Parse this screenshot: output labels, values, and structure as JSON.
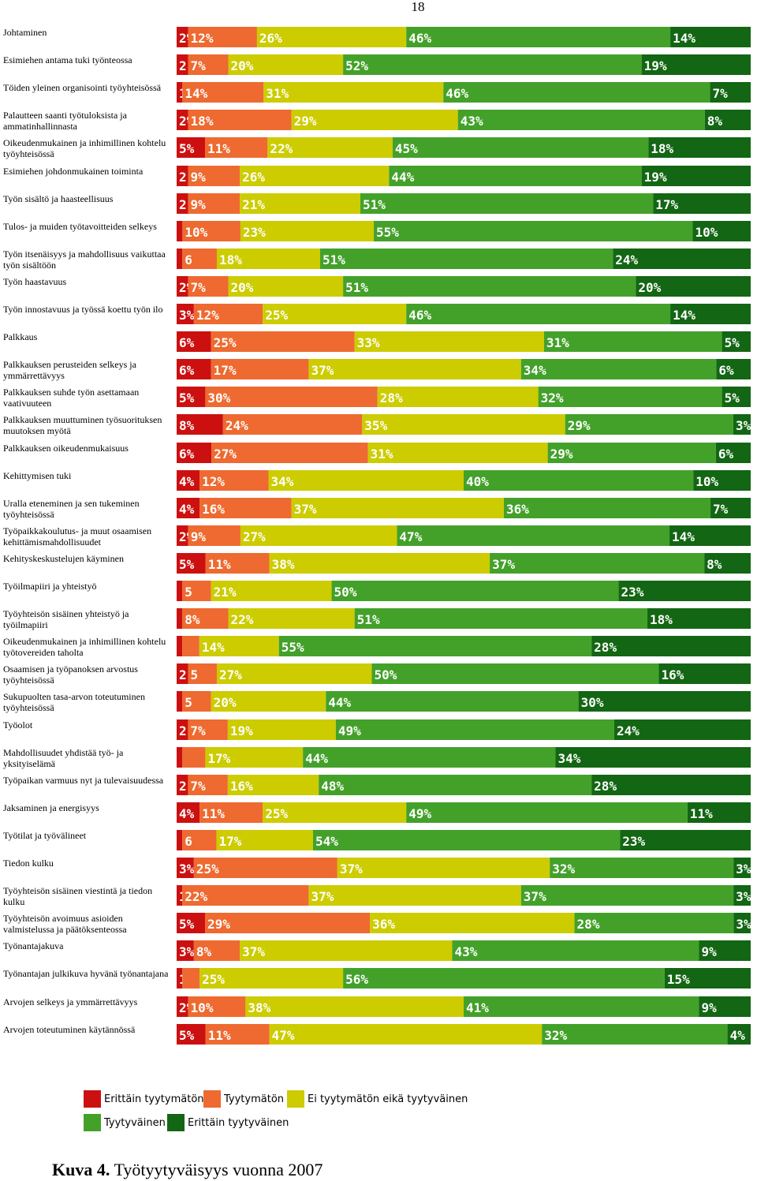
{
  "page_number": "18",
  "caption": {
    "label": "Kuva 4.",
    "text": "Työtyytyväisyys vuonna 2007"
  },
  "colors": [
    "#cc1010",
    "#ee6a30",
    "#cccc00",
    "#43a12a",
    "#136613"
  ],
  "legend": [
    {
      "label": "Erittäin tyytymätön",
      "color": "#cc1010"
    },
    {
      "label": "Tyytymätön",
      "color": "#ee6a30"
    },
    {
      "label": "Ei tyytymätön eikä tyytyväinen",
      "color": "#cccc00"
    },
    {
      "label": "Tyytyväinen",
      "color": "#43a12a"
    },
    {
      "label": "Erittäin tyytyväinen",
      "color": "#136613"
    }
  ],
  "chart_data": {
    "type": "bar",
    "orientation": "horizontal",
    "stacked": true,
    "unit": "%",
    "xlim": [
      0,
      100
    ],
    "series_names": [
      "Erittäin tyytymätön",
      "Tyytymätön",
      "Ei tyytymätön eikä tyytyväinen",
      "Tyytyväinen",
      "Erittäin tyytyväinen"
    ],
    "rows": [
      {
        "label": "Johtaminen",
        "values": [
          2,
          12,
          26,
          46,
          14
        ],
        "labels": [
          "2%",
          "12%",
          "26%",
          "46%",
          "14%"
        ]
      },
      {
        "label": "Esimiehen antama tuki työnteossa",
        "values": [
          2,
          7,
          20,
          52,
          19
        ],
        "labels": [
          "2",
          "7%",
          "20%",
          "52%",
          "19%"
        ]
      },
      {
        "label": "Töiden yleinen organisointi työyhteisössä",
        "values": [
          1,
          14,
          31,
          46,
          7
        ],
        "labels": [
          "1",
          "14%",
          "31%",
          "46%",
          "7%"
        ]
      },
      {
        "label": "Palautteen saanti työtuloksista ja ammatinhallinnasta",
        "values": [
          2,
          18,
          29,
          43,
          8
        ],
        "labels": [
          "2%",
          "18%",
          "29%",
          "43%",
          "8%"
        ]
      },
      {
        "label": "Oikeudenmukainen ja inhimillinen kohtelu työyhteisössä",
        "values": [
          5,
          11,
          22,
          45,
          18
        ],
        "labels": [
          "5%",
          "11%",
          "22%",
          "45%",
          "18%"
        ]
      },
      {
        "label": "Esimiehen johdonmukainen toiminta",
        "values": [
          2,
          9,
          26,
          44,
          19
        ],
        "labels": [
          "2",
          "9%",
          "26%",
          "44%",
          "19%"
        ]
      },
      {
        "label": "Työn sisältö ja haasteellisuus",
        "values": [
          2,
          9,
          21,
          51,
          17
        ],
        "labels": [
          "2",
          "9%",
          "21%",
          "51%",
          "17%"
        ]
      },
      {
        "label": "Tulos- ja muiden työtavoitteiden selkeys",
        "values": [
          1,
          10,
          23,
          55,
          10
        ],
        "labels": [
          "",
          "10%",
          "23%",
          "55%",
          "10%"
        ]
      },
      {
        "label": "Työn itsenäisyys ja mahdollisuus vaikuttaa työn sisältöön",
        "values": [
          1,
          6,
          18,
          51,
          24
        ],
        "labels": [
          "",
          "6",
          "18%",
          "51%",
          "24%"
        ]
      },
      {
        "label": "Työn haastavuus",
        "values": [
          2,
          7,
          20,
          51,
          20
        ],
        "labels": [
          "2%",
          "7%",
          "20%",
          "51%",
          "20%"
        ]
      },
      {
        "label": "Työn innostavuus ja työssä koettu työn ilo",
        "values": [
          3,
          12,
          25,
          46,
          14
        ],
        "labels": [
          "3%",
          "12%",
          "25%",
          "46%",
          "14%"
        ]
      },
      {
        "label": "Palkkaus",
        "values": [
          6,
          25,
          33,
          31,
          5
        ],
        "labels": [
          "6%",
          "25%",
          "33%",
          "31%",
          "5%"
        ]
      },
      {
        "label": "Palkkauksen perusteiden selkeys ja ymmärrettävyys",
        "values": [
          6,
          17,
          37,
          34,
          6
        ],
        "labels": [
          "6%",
          "17%",
          "37%",
          "34%",
          "6%"
        ]
      },
      {
        "label": "Palkkauksen suhde työn asettamaan vaativuuteen",
        "values": [
          5,
          30,
          28,
          32,
          5
        ],
        "labels": [
          "5%",
          "30%",
          "28%",
          "32%",
          "5%"
        ]
      },
      {
        "label": "Palkkauksen muuttuminen työsuorituksen muutoksen myötä",
        "values": [
          8,
          24,
          35,
          29,
          3
        ],
        "labels": [
          "8%",
          "24%",
          "35%",
          "29%",
          "3%"
        ]
      },
      {
        "label": "Palkkauksen oikeudenmukaisuus",
        "values": [
          6,
          27,
          31,
          29,
          6
        ],
        "labels": [
          "6%",
          "27%",
          "31%",
          "29%",
          "6%"
        ]
      },
      {
        "label": "Kehittymisen tuki",
        "values": [
          4,
          12,
          34,
          40,
          10
        ],
        "labels": [
          "4%",
          "12%",
          "34%",
          "40%",
          "10%"
        ]
      },
      {
        "label": "Uralla eteneminen ja sen tukeminen työyhteisössä",
        "values": [
          4,
          16,
          37,
          36,
          7
        ],
        "labels": [
          "4%",
          "16%",
          "37%",
          "36%",
          "7%"
        ]
      },
      {
        "label": "Työpaikkakoulutus- ja muut osaamisen kehittämismahdollisuudet",
        "values": [
          2,
          9,
          27,
          47,
          14
        ],
        "labels": [
          "2%",
          "9%",
          "27%",
          "47%",
          "14%"
        ]
      },
      {
        "label": "Kehityskeskustelujen käyminen",
        "values": [
          5,
          11,
          38,
          37,
          8
        ],
        "labels": [
          "5%",
          "11%",
          "38%",
          "37%",
          "8%"
        ]
      },
      {
        "label": "Työilmapiiri ja yhteistyö",
        "values": [
          1,
          5,
          21,
          50,
          23
        ],
        "labels": [
          "",
          "5",
          "21%",
          "50%",
          "23%"
        ]
      },
      {
        "label": "Työyhteisön sisäinen yhteistyö ja työilmapiiri",
        "values": [
          1,
          8,
          22,
          51,
          18
        ],
        "labels": [
          "",
          "8%",
          "22%",
          "51%",
          "18%"
        ]
      },
      {
        "label": "Oikeudenmukainen ja inhimillinen kohtelu työtovereiden taholta",
        "values": [
          1,
          3,
          14,
          55,
          28
        ],
        "labels": [
          "",
          "",
          "14%",
          "55%",
          "28%"
        ]
      },
      {
        "label": "Osaamisen ja työpanoksen arvostus työyhteisössä",
        "values": [
          2,
          5,
          27,
          50,
          16
        ],
        "labels": [
          "2",
          "5",
          "27%",
          "50%",
          "16%"
        ]
      },
      {
        "label": "Sukupuolten tasa-arvon toteutuminen työyhteisössä",
        "values": [
          1,
          5,
          20,
          44,
          30
        ],
        "labels": [
          "",
          "5",
          "20%",
          "44%",
          "30%"
        ]
      },
      {
        "label": "Työolot",
        "values": [
          2,
          7,
          19,
          49,
          24
        ],
        "labels": [
          "2",
          "7%",
          "19%",
          "49%",
          "24%"
        ]
      },
      {
        "label": "Mahdollisuudet yhdistää työ- ja yksityiselämä",
        "values": [
          1,
          4,
          17,
          44,
          34
        ],
        "labels": [
          "",
          "",
          "17%",
          "44%",
          "34%"
        ]
      },
      {
        "label": "Työpaikan varmuus nyt ja tulevaisuudessa",
        "values": [
          2,
          7,
          16,
          48,
          28
        ],
        "labels": [
          "2",
          "7%",
          "16%",
          "48%",
          "28%"
        ]
      },
      {
        "label": "Jaksaminen ja energisyys",
        "values": [
          4,
          11,
          25,
          49,
          11
        ],
        "labels": [
          "4%",
          "11%",
          "25%",
          "49%",
          "11%"
        ]
      },
      {
        "label": "Työtilat ja työvälineet",
        "values": [
          1,
          6,
          17,
          54,
          23
        ],
        "labels": [
          "",
          "6",
          "17%",
          "54%",
          "23%"
        ]
      },
      {
        "label": "Tiedon kulku",
        "values": [
          3,
          25,
          37,
          32,
          3
        ],
        "labels": [
          "3%",
          "25%",
          "37%",
          "32%",
          "3%"
        ]
      },
      {
        "label": "Työyhteisön sisäinen viestintä ja tiedon kulku",
        "values": [
          1,
          22,
          37,
          37,
          3
        ],
        "labels": [
          "1",
          "22%",
          "37%",
          "37%",
          "3%"
        ]
      },
      {
        "label": "Työyhteisön avoimuus asioiden valmistelussa ja päätöksenteossa",
        "values": [
          5,
          29,
          36,
          28,
          3
        ],
        "labels": [
          "5%",
          "29%",
          "36%",
          "28%",
          "3%"
        ]
      },
      {
        "label": "Työnantajakuva",
        "values": [
          3,
          8,
          37,
          43,
          9
        ],
        "labels": [
          "3%",
          "8%",
          "37%",
          "43%",
          "9%"
        ]
      },
      {
        "label": "Työnantajan julkikuva hyvänä työnantajana",
        "values": [
          1,
          3,
          25,
          56,
          15
        ],
        "labels": [
          "1",
          "",
          "25%",
          "56%",
          "15%"
        ]
      },
      {
        "label": "Arvojen selkeys ja ymmärrettävyys",
        "values": [
          2,
          10,
          38,
          41,
          9
        ],
        "labels": [
          "2%",
          "10%",
          "38%",
          "41%",
          "9%"
        ]
      },
      {
        "label": "Arvojen toteutuminen käytännössä",
        "values": [
          5,
          11,
          47,
          32,
          4
        ],
        "labels": [
          "5%",
          "11%",
          "47%",
          "32%",
          "4%"
        ]
      }
    ]
  }
}
